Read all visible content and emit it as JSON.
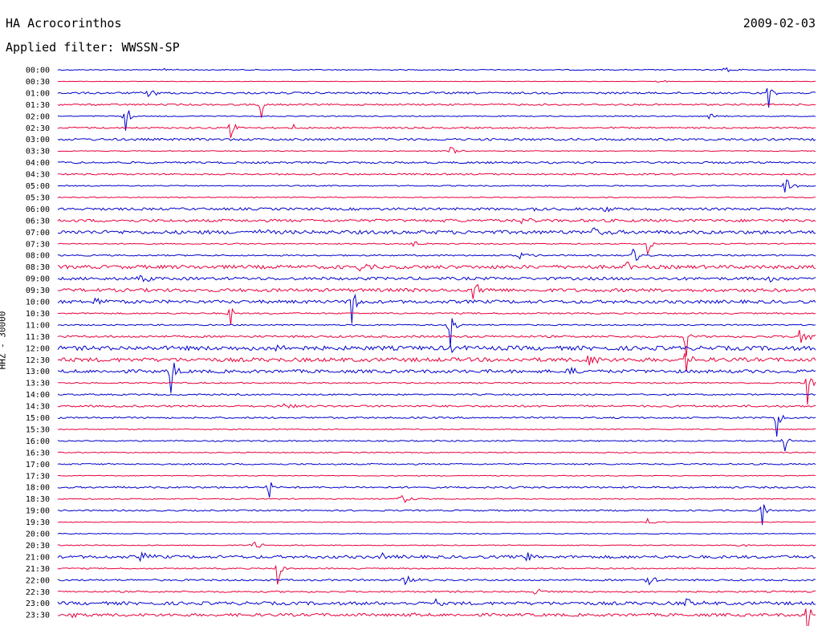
{
  "header": {
    "station": "HA Acrocorinthos",
    "filter": "Applied filter: WWSSN-SP",
    "date": "2009-02-03"
  },
  "chart_data": {
    "type": "line",
    "title": "HA Acrocorinthos",
    "subtitle": "Applied filter: WWSSN-SP",
    "date": "2009-02-03",
    "ylabel": "HHZ - 30000",
    "colors": {
      "even_trace": "#0000cc",
      "odd_trace": "#e8003c",
      "axis_text": "#000000"
    },
    "grid": false,
    "legend": "none",
    "rows": [
      {
        "label": "00:00",
        "noise": 0.6,
        "events": [
          [
            0.88,
            4
          ],
          [
            0.14,
            2
          ]
        ]
      },
      {
        "label": "00:30",
        "noise": 0.3,
        "events": [
          [
            0.79,
            3
          ]
        ]
      },
      {
        "label": "01:00",
        "noise": 1.2,
        "events": [
          [
            0.12,
            10
          ],
          [
            0.94,
            20
          ]
        ]
      },
      {
        "label": "01:30",
        "noise": 1.0,
        "events": [
          [
            0.27,
            18
          ]
        ]
      },
      {
        "label": "02:00",
        "noise": 0.6,
        "events": [
          [
            0.09,
            20
          ],
          [
            0.86,
            4
          ]
        ]
      },
      {
        "label": "02:30",
        "noise": 1.0,
        "events": [
          [
            0.23,
            14
          ],
          [
            0.31,
            4
          ]
        ]
      },
      {
        "label": "03:00",
        "noise": 1.4,
        "events": []
      },
      {
        "label": "03:30",
        "noise": 0.5,
        "events": [
          [
            0.52,
            5
          ]
        ]
      },
      {
        "label": "04:00",
        "noise": 1.2,
        "events": []
      },
      {
        "label": "04:30",
        "noise": 1.0,
        "events": []
      },
      {
        "label": "05:00",
        "noise": 0.7,
        "events": [
          [
            0.96,
            12
          ]
        ]
      },
      {
        "label": "05:30",
        "noise": 0.6,
        "events": []
      },
      {
        "label": "06:00",
        "noise": 1.5,
        "events": [
          [
            0.62,
            5
          ],
          [
            0.72,
            5
          ]
        ]
      },
      {
        "label": "06:30",
        "noise": 1.7,
        "events": [
          [
            0.61,
            6
          ],
          [
            0.5,
            3
          ]
        ]
      },
      {
        "label": "07:00",
        "noise": 2.2,
        "events": [
          [
            0.71,
            7
          ],
          [
            0.27,
            4
          ]
        ]
      },
      {
        "label": "07:30",
        "noise": 0.7,
        "events": [
          [
            0.78,
            14
          ],
          [
            0.47,
            4
          ]
        ]
      },
      {
        "label": "08:00",
        "noise": 0.9,
        "events": [
          [
            0.76,
            9
          ],
          [
            0.61,
            5
          ]
        ]
      },
      {
        "label": "08:30",
        "noise": 2.2,
        "events": [
          [
            0.75,
            8
          ],
          [
            0.4,
            4
          ]
        ]
      },
      {
        "label": "09:00",
        "noise": 1.8,
        "events": [
          [
            0.11,
            10
          ],
          [
            0.94,
            4
          ]
        ]
      },
      {
        "label": "09:30",
        "noise": 2.0,
        "events": [
          [
            0.55,
            10
          ],
          [
            0.46,
            4
          ]
        ]
      },
      {
        "label": "10:00",
        "noise": 2.0,
        "events": [
          [
            0.05,
            5
          ],
          [
            0.39,
            30
          ]
        ]
      },
      {
        "label": "10:30",
        "noise": 0.9,
        "events": [
          [
            0.23,
            16
          ]
        ]
      },
      {
        "label": "11:00",
        "noise": 0.8,
        "events": [
          [
            0.52,
            30
          ]
        ]
      },
      {
        "label": "11:30",
        "noise": 1.3,
        "events": [
          [
            0.83,
            28
          ],
          [
            0.98,
            10
          ]
        ]
      },
      {
        "label": "12:00",
        "noise": 2.6,
        "events": [
          [
            0.29,
            8
          ],
          [
            0.52,
            6
          ]
        ]
      },
      {
        "label": "12:30",
        "noise": 2.4,
        "events": [
          [
            0.83,
            16
          ],
          [
            0.7,
            8
          ]
        ]
      },
      {
        "label": "13:00",
        "noise": 2.0,
        "events": [
          [
            0.15,
            30
          ],
          [
            0.67,
            6
          ]
        ]
      },
      {
        "label": "13:30",
        "noise": 0.8,
        "events": [
          [
            0.99,
            30
          ]
        ]
      },
      {
        "label": "14:00",
        "noise": 0.9,
        "events": []
      },
      {
        "label": "14:30",
        "noise": 1.2,
        "events": [
          [
            0.3,
            4
          ]
        ]
      },
      {
        "label": "15:00",
        "noise": 1.0,
        "events": [
          [
            0.95,
            26
          ]
        ]
      },
      {
        "label": "15:30",
        "noise": 0.6,
        "events": []
      },
      {
        "label": "16:00",
        "noise": 0.8,
        "events": [
          [
            0.96,
            14
          ]
        ]
      },
      {
        "label": "16:30",
        "noise": 0.6,
        "events": []
      },
      {
        "label": "17:00",
        "noise": 0.9,
        "events": []
      },
      {
        "label": "17:30",
        "noise": 0.5,
        "events": []
      },
      {
        "label": "18:00",
        "noise": 1.1,
        "events": [
          [
            0.28,
            14
          ]
        ]
      },
      {
        "label": "18:30",
        "noise": 0.7,
        "events": [
          [
            0.45,
            8
          ]
        ]
      },
      {
        "label": "19:00",
        "noise": 0.9,
        "events": [
          [
            0.93,
            20
          ]
        ]
      },
      {
        "label": "19:30",
        "noise": 0.5,
        "events": [
          [
            0.78,
            4
          ]
        ]
      },
      {
        "label": "20:00",
        "noise": 0.5,
        "events": []
      },
      {
        "label": "20:30",
        "noise": 0.6,
        "events": [
          [
            0.26,
            6
          ],
          [
            0.9,
            3
          ]
        ]
      },
      {
        "label": "21:00",
        "noise": 1.8,
        "events": [
          [
            0.62,
            6
          ],
          [
            0.11,
            6
          ],
          [
            0.43,
            6
          ]
        ]
      },
      {
        "label": "21:30",
        "noise": 0.8,
        "events": [
          [
            0.29,
            22
          ]
        ]
      },
      {
        "label": "22:00",
        "noise": 1.1,
        "events": [
          [
            0.46,
            8
          ],
          [
            0.78,
            8
          ]
        ]
      },
      {
        "label": "22:30",
        "noise": 1.0,
        "events": [
          [
            0.63,
            4
          ],
          [
            0.7,
            3
          ]
        ]
      },
      {
        "label": "23:00",
        "noise": 2.0,
        "events": [
          [
            0.83,
            7
          ],
          [
            0.5,
            4
          ]
        ]
      },
      {
        "label": "23:30",
        "noise": 1.8,
        "events": [
          [
            0.99,
            28
          ],
          [
            0.47,
            4
          ],
          [
            0.02,
            4
          ]
        ]
      }
    ]
  }
}
